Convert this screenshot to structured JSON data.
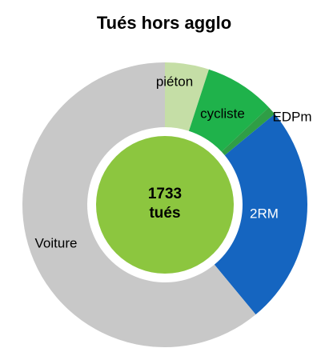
{
  "chart_data": {
    "type": "donut",
    "title": "Tués hors agglo",
    "categories": [
      "piéton",
      "cycliste",
      "EDPm",
      "2RM",
      "Voiture"
    ],
    "values": [
      5,
      8,
      1,
      25,
      61
    ],
    "colors": [
      "#c5dea6",
      "#1fb24b",
      "#2f9e46",
      "#1565c0",
      "#c8c8c8"
    ],
    "total": 1733,
    "total_label": "tués",
    "center_color": "#8cc63f"
  }
}
